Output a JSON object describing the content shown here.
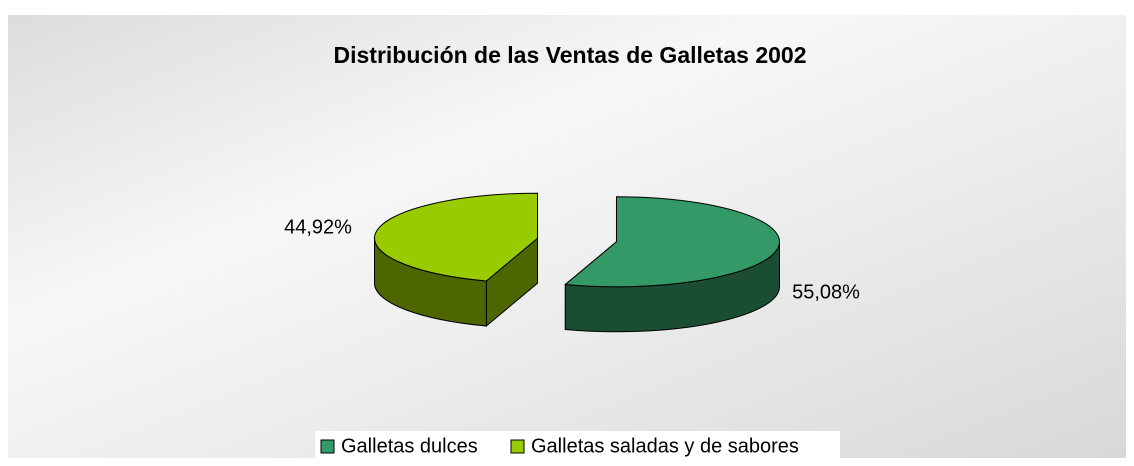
{
  "chart_data": {
    "type": "pie",
    "title": "Distribución de las Ventas de Galletas 2002",
    "categories": [
      "Galletas dulces",
      "Galletas saladas y de sabores"
    ],
    "values": [
      55.08,
      44.92
    ],
    "value_labels": [
      "55,08%",
      "44,92%"
    ],
    "colors": [
      "#339966",
      "#99cc00"
    ],
    "legend": "bottom"
  }
}
